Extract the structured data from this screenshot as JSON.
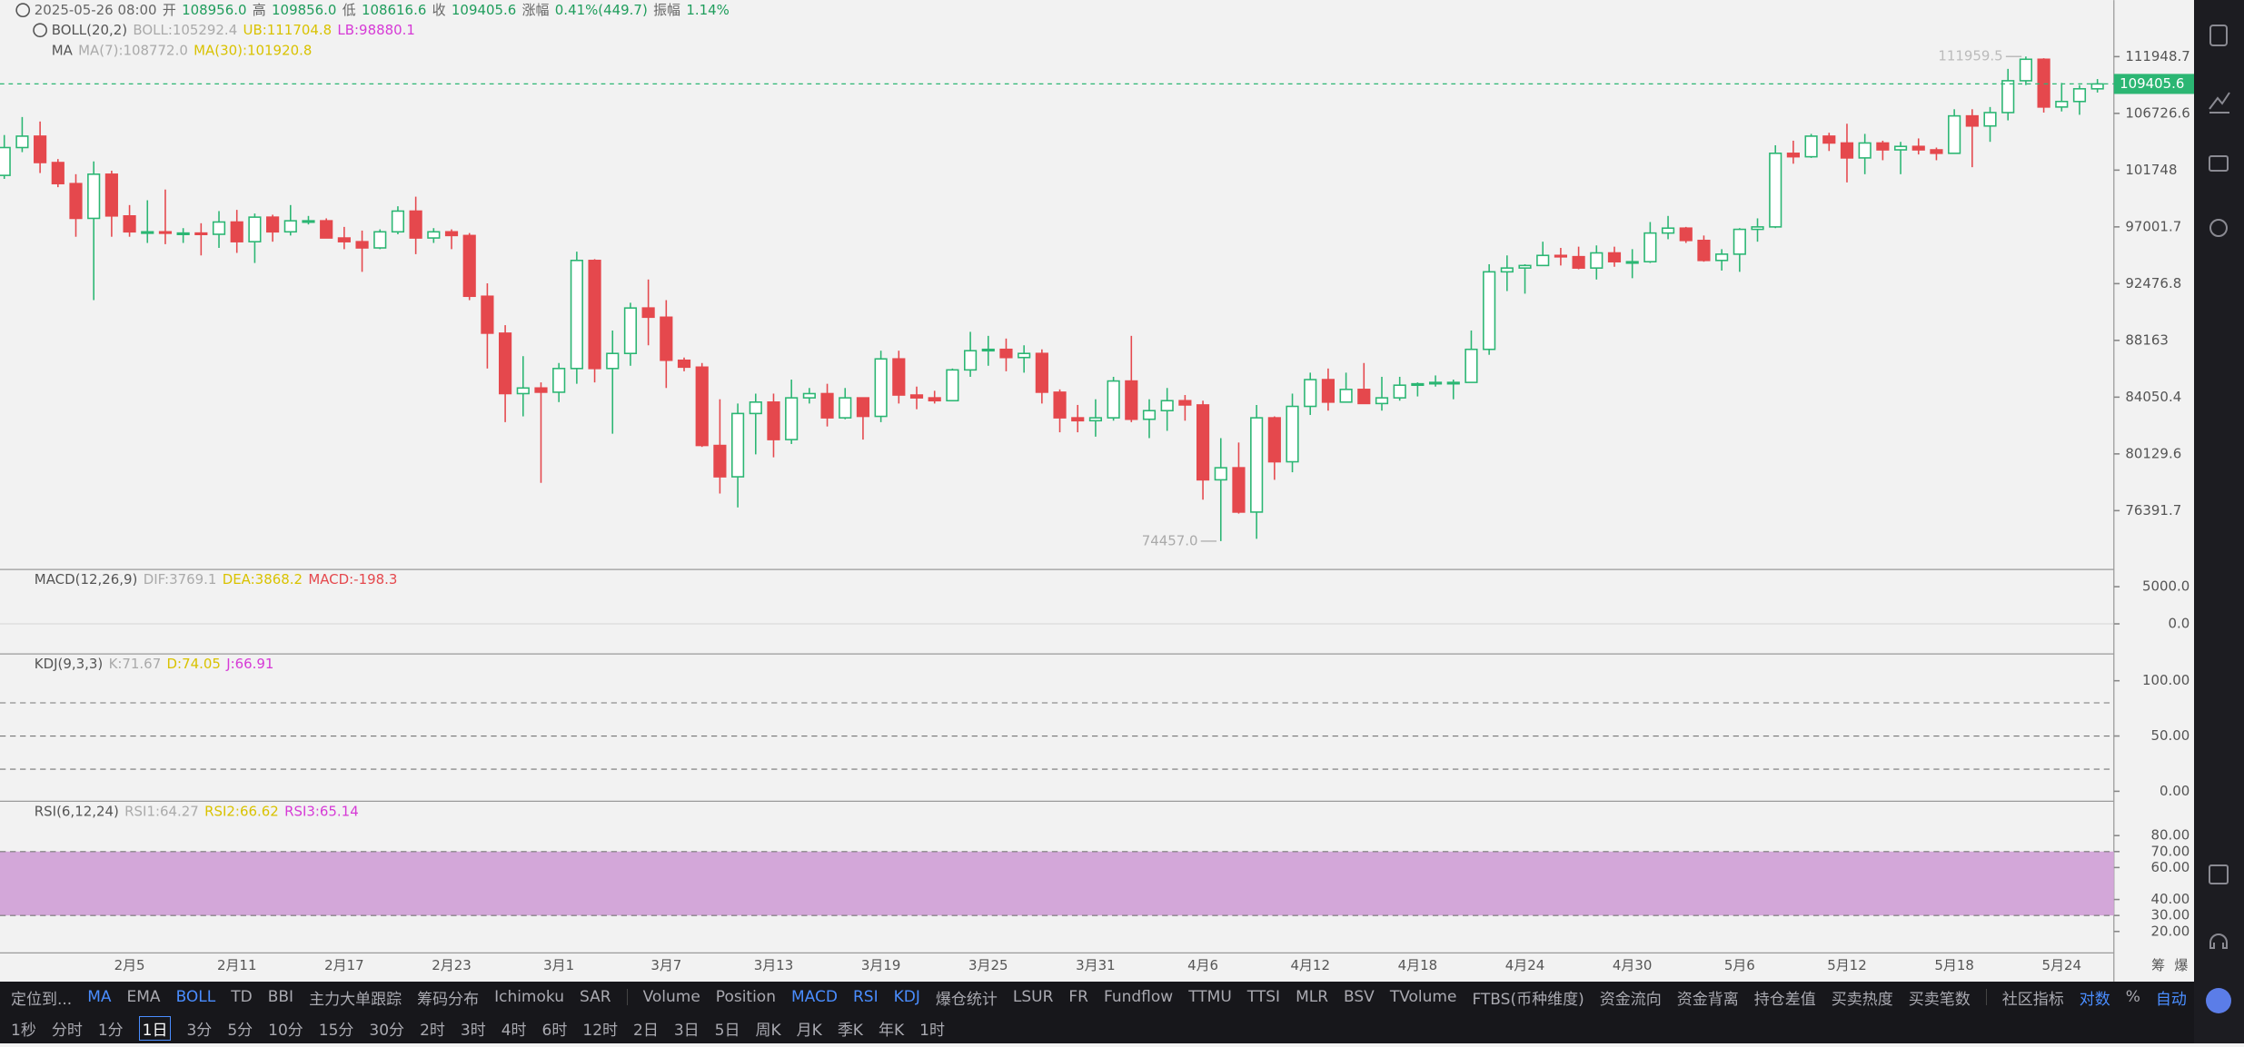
{
  "chart_data": {
    "type": "candlestick",
    "log_scale": true,
    "ylim": [
      72700,
      117400
    ],
    "yticks": [
      111948.7,
      106726.6,
      101748.0,
      97001.7,
      92476.8,
      88163.0,
      84050.4,
      80129.6,
      76391.7
    ],
    "up_color": "#2bb673",
    "down_color": "#e5484d",
    "categories": [
      null,
      null,
      null,
      null,
      null,
      null,
      null,
      "2月5",
      null,
      null,
      null,
      null,
      null,
      "2月11",
      null,
      null,
      null,
      null,
      null,
      "2月17",
      null,
      null,
      null,
      null,
      null,
      "2月23",
      null,
      null,
      null,
      null,
      null,
      "3月1",
      null,
      null,
      null,
      null,
      null,
      "3月7",
      null,
      null,
      null,
      null,
      null,
      "3月13",
      null,
      null,
      null,
      null,
      null,
      "3月19",
      null,
      null,
      null,
      null,
      null,
      "3月25",
      null,
      null,
      null,
      null,
      null,
      "3月31",
      null,
      null,
      null,
      null,
      null,
      "4月6",
      null,
      null,
      null,
      null,
      null,
      "4月12",
      null,
      null,
      null,
      null,
      null,
      "4月18",
      null,
      null,
      null,
      null,
      null,
      "4月24",
      null,
      null,
      null,
      null,
      null,
      "4月30",
      null,
      null,
      null,
      null,
      null,
      "5月6",
      null,
      null,
      null,
      null,
      null,
      "5月12",
      null,
      null,
      null,
      null,
      null,
      "5月18",
      null,
      null,
      null,
      null,
      null,
      "5月24",
      null,
      null
    ],
    "candles": {
      "open": [
        101300,
        103700,
        104700,
        102400,
        100600,
        97700,
        101400,
        97900,
        96600,
        96600,
        96500,
        96500,
        96400,
        97400,
        95800,
        97800,
        96600,
        97500,
        97500,
        96100,
        95800,
        95300,
        96600,
        98300,
        96100,
        96600,
        96300,
        91500,
        88700,
        84300,
        84700,
        84400,
        86100,
        94300,
        86100,
        87200,
        90600,
        89900,
        86700,
        86200,
        80700,
        78600,
        82900,
        83700,
        81100,
        84000,
        84300,
        82600,
        84000,
        82700,
        86800,
        84200,
        84000,
        83800,
        86000,
        87400,
        87500,
        86900,
        87200,
        84400,
        82600,
        82400,
        82600,
        85200,
        82500,
        83100,
        83800,
        83500,
        78400,
        79200,
        76300,
        82600,
        79600,
        83400,
        85300,
        83700,
        84600,
        83600,
        84000,
        84900,
        85000,
        85100,
        85100,
        87500,
        93400,
        93700,
        93900,
        94700,
        94600,
        93700,
        94900,
        94200,
        94200,
        96500,
        96900,
        95900,
        94300,
        94800,
        96800,
        97000,
        103200,
        102900,
        104700,
        104100,
        102800,
        104100,
        103500,
        103800,
        103500,
        103200,
        106500,
        105600,
        106800,
        109700,
        111700,
        107300,
        107800,
        108956
      ],
      "high": [
        104800,
        106400,
        106000,
        102700,
        101400,
        102500,
        101700,
        98800,
        99200,
        100100,
        96900,
        97300,
        98300,
        98400,
        98100,
        98000,
        98800,
        97900,
        97700,
        97000,
        96700,
        96800,
        98700,
        99500,
        96900,
        96800,
        96500,
        92500,
        89300,
        87000,
        85100,
        86500,
        95000,
        94400,
        88900,
        91000,
        92800,
        91200,
        86900,
        86500,
        83900,
        83600,
        84300,
        84300,
        85300,
        84700,
        85000,
        84700,
        84000,
        87400,
        87400,
        84800,
        84500,
        86100,
        88800,
        88500,
        88300,
        87800,
        87500,
        84600,
        83500,
        83900,
        85500,
        88500,
        83900,
        84700,
        84200,
        83800,
        81200,
        80900,
        83500,
        82700,
        84300,
        85800,
        86100,
        85800,
        86500,
        85500,
        85500,
        85100,
        85600,
        85300,
        88900,
        94000,
        94700,
        94000,
        95800,
        95300,
        95400,
        95500,
        95400,
        95200,
        97400,
        97900,
        97000,
        96300,
        95200,
        96900,
        97700,
        103900,
        104300,
        104900,
        105000,
        105800,
        104900,
        104300,
        104200,
        104500,
        103700,
        107100,
        107100,
        107300,
        110800,
        111959.5,
        111800,
        109500,
        109300,
        109856
      ],
      "low": [
        101000,
        103300,
        101500,
        100300,
        96200,
        91200,
        96200,
        96200,
        95700,
        95600,
        95700,
        94700,
        95300,
        94900,
        94100,
        95800,
        96300,
        97200,
        96300,
        95200,
        93400,
        95200,
        96400,
        94800,
        95700,
        95200,
        91200,
        86100,
        82300,
        82700,
        78200,
        83700,
        85000,
        85100,
        81500,
        86300,
        87800,
        84700,
        85900,
        80600,
        77500,
        76600,
        80100,
        79900,
        80800,
        83600,
        82000,
        82500,
        81100,
        82300,
        83600,
        83200,
        83600,
        83800,
        85500,
        86300,
        85900,
        85800,
        83600,
        81600,
        81600,
        81300,
        82400,
        82300,
        81200,
        81700,
        82400,
        77100,
        74457,
        76200,
        74600,
        78400,
        78900,
        82800,
        83100,
        83700,
        83600,
        83100,
        83800,
        84100,
        84800,
        83900,
        85100,
        87100,
        91900,
        91700,
        93900,
        93900,
        93600,
        92800,
        93800,
        92900,
        94100,
        96000,
        95700,
        94200,
        93500,
        93400,
        95800,
        96900,
        102300,
        102800,
        103400,
        100700,
        101400,
        102600,
        101400,
        103100,
        102600,
        103200,
        102000,
        104200,
        106100,
        109300,
        106800,
        106900,
        106600,
        108616.6
      ],
      "close": [
        103700,
        104700,
        102400,
        100600,
        97700,
        101400,
        97900,
        96600,
        96600,
        96500,
        96500,
        96400,
        97400,
        95800,
        97800,
        96600,
        97500,
        97500,
        96100,
        95800,
        95300,
        96600,
        98300,
        96100,
        96600,
        96300,
        91500,
        88700,
        84300,
        84700,
        84400,
        86100,
        94300,
        86100,
        87200,
        90600,
        89900,
        86700,
        86200,
        80700,
        78600,
        82900,
        83700,
        81100,
        84000,
        84300,
        82600,
        84000,
        82700,
        86800,
        84200,
        84000,
        83800,
        86000,
        87400,
        87500,
        86900,
        87200,
        84400,
        82600,
        82400,
        82600,
        85200,
        82500,
        83100,
        83800,
        83500,
        78400,
        79200,
        76300,
        82600,
        79600,
        83400,
        85300,
        83700,
        84600,
        83600,
        84000,
        84900,
        85000,
        85100,
        85100,
        87500,
        93400,
        93700,
        93900,
        94700,
        94600,
        93700,
        94900,
        94200,
        94200,
        96500,
        96900,
        95900,
        94300,
        94800,
        96800,
        97000,
        103200,
        102900,
        104700,
        104100,
        102800,
        104100,
        103500,
        103800,
        103500,
        103200,
        106500,
        105600,
        106800,
        109700,
        111700,
        107300,
        107800,
        108956,
        109405.6
      ]
    },
    "low_label": "74457.0",
    "macd": {
      "ylim": [
        -4040,
        7120
      ],
      "yticks": [
        {
          "value": 5000,
          "label": "5000.0"
        },
        {
          "value": 0,
          "label": "0.0"
        }
      ]
    },
    "kdj": {
      "ylim": [
        -9,
        123
      ],
      "yticks": [
        {
          "value": 100,
          "label": "100.00"
        },
        {
          "value": 50,
          "label": "50.00"
        },
        {
          "value": 0,
          "label": "0.00"
        }
      ],
      "levels": [
        80,
        50,
        20
      ]
    },
    "rsi": {
      "ylim": [
        6.6,
        100.6
      ],
      "yticks": [
        {
          "value": 80,
          "label": "80.00"
        },
        {
          "value": 70,
          "label": "70.00"
        },
        {
          "value": 60,
          "label": "60.00"
        },
        {
          "value": 40,
          "label": "40.00"
        },
        {
          "value": 30,
          "label": "30.00"
        },
        {
          "value": 20,
          "label": "20.00"
        }
      ],
      "band": [
        70,
        30
      ],
      "band_color": "#d3a7d9"
    }
  },
  "header": {
    "line1": [
      {
        "text": "2025-05-26 08:00",
        "color": "#666"
      },
      {
        "text": "开",
        "color": "#666"
      },
      {
        "text": "108956.0",
        "color": "#1f9d5c"
      },
      {
        "text": "高",
        "color": "#666"
      },
      {
        "text": "109856.0",
        "color": "#1f9d5c"
      },
      {
        "text": "低",
        "color": "#666"
      },
      {
        "text": "108616.6",
        "color": "#1f9d5c"
      },
      {
        "text": "收",
        "color": "#666"
      },
      {
        "text": "109405.6",
        "color": "#1f9d5c"
      },
      {
        "text": "涨幅",
        "color": "#666"
      },
      {
        "text": "0.41%(449.7)",
        "color": "#1f9d5c"
      },
      {
        "text": "振幅",
        "color": "#666"
      },
      {
        "text": "1.14%",
        "color": "#1f9d5c"
      }
    ],
    "line2": [
      {
        "text": "BOLL(20,2)",
        "color": "#555"
      },
      {
        "text": "BOLL:105292.4",
        "color": "#aaa"
      },
      {
        "text": "UB:111704.8",
        "color": "#d9c200"
      },
      {
        "text": "LB:98880.1",
        "color": "#d63ad6"
      }
    ],
    "line3": [
      {
        "text": "MA",
        "color": "#555"
      },
      {
        "text": "MA(7):108772.0",
        "color": "#aaa"
      },
      {
        "text": "MA(30):101920.8",
        "color": "#d9c200"
      }
    ],
    "macd": [
      {
        "text": "MACD(12,26,9)",
        "color": "#555"
      },
      {
        "text": "DIF:3769.1",
        "color": "#aaa"
      },
      {
        "text": "DEA:3868.2",
        "color": "#d9c200"
      },
      {
        "text": "MACD:-198.3",
        "color": "#e5484d"
      }
    ],
    "kdj": [
      {
        "text": "KDJ(9,3,3)",
        "color": "#555"
      },
      {
        "text": "K:71.67",
        "color": "#aaa"
      },
      {
        "text": "D:74.05",
        "color": "#d9c200"
      },
      {
        "text": "J:66.91",
        "color": "#d63ad6"
      }
    ],
    "rsi": [
      {
        "text": "RSI(6,12,24)",
        "color": "#555"
      },
      {
        "text": "RSI1:64.27",
        "color": "#aaa"
      },
      {
        "text": "RSI2:66.62",
        "color": "#d9c200"
      },
      {
        "text": "RSI3:65.14",
        "color": "#d63ad6"
      }
    ]
  },
  "axis_extra": [
    "筹",
    "爆"
  ],
  "toolbar": {
    "left": [
      {
        "label": "定位到...",
        "active": false
      },
      {
        "label": "MA",
        "active": true
      },
      {
        "label": "EMA",
        "active": false
      },
      {
        "label": "BOLL",
        "active": true
      },
      {
        "label": "TD",
        "active": false
      },
      {
        "label": "BBI",
        "active": false
      },
      {
        "label": "主力大单跟踪",
        "active": false
      },
      {
        "label": "筹码分布",
        "active": false
      },
      {
        "label": "Ichimoku",
        "active": false
      },
      {
        "label": "SAR",
        "active": false
      }
    ],
    "middle": [
      {
        "label": "Volume",
        "active": false
      },
      {
        "label": "Position",
        "active": false
      },
      {
        "label": "MACD",
        "active": true
      },
      {
        "label": "RSI",
        "active": true
      },
      {
        "label": "KDJ",
        "active": true
      },
      {
        "label": "爆仓统计",
        "active": false
      },
      {
        "label": "LSUR",
        "active": false
      },
      {
        "label": "FR",
        "active": false
      },
      {
        "label": "Fundflow",
        "active": false
      },
      {
        "label": "TTMU",
        "active": false
      },
      {
        "label": "TTSI",
        "active": false
      },
      {
        "label": "MLR",
        "active": false
      },
      {
        "label": "BSV",
        "active": false
      },
      {
        "label": "TVolume",
        "active": false
      },
      {
        "label": "FTBS(币种维度)",
        "active": false
      },
      {
        "label": "资金流向",
        "active": false
      },
      {
        "label": "资金背离",
        "active": false
      },
      {
        "label": "持仓差值",
        "active": false
      },
      {
        "label": "买卖热度",
        "active": false
      },
      {
        "label": "买卖笔数",
        "active": false
      }
    ],
    "right": [
      {
        "label": "社区指标",
        "active": false
      },
      {
        "label": "对数",
        "active": true
      },
      {
        "label": "%",
        "active": false
      },
      {
        "label": "自动",
        "active": true
      }
    ],
    "intervals": [
      {
        "label": "1秒",
        "active": false
      },
      {
        "label": "分时",
        "active": false
      },
      {
        "label": "1分",
        "active": false
      },
      {
        "label": "1日",
        "active": true
      },
      {
        "label": "3分",
        "active": false
      },
      {
        "label": "5分",
        "active": false
      },
      {
        "label": "10分",
        "active": false
      },
      {
        "label": "15分",
        "active": false
      },
      {
        "label": "30分",
        "active": false
      },
      {
        "label": "2时",
        "active": false
      },
      {
        "label": "3时",
        "active": false
      },
      {
        "label": "4时",
        "active": false
      },
      {
        "label": "6时",
        "active": false
      },
      {
        "label": "12时",
        "active": false
      },
      {
        "label": "2日",
        "active": false
      },
      {
        "label": "3日",
        "active": false
      },
      {
        "label": "5日",
        "active": false
      },
      {
        "label": "周K",
        "active": false
      },
      {
        "label": "月K",
        "active": false
      },
      {
        "label": "季K",
        "active": false
      },
      {
        "label": "年K",
        "active": false
      },
      {
        "label": "1时",
        "active": false
      }
    ]
  }
}
